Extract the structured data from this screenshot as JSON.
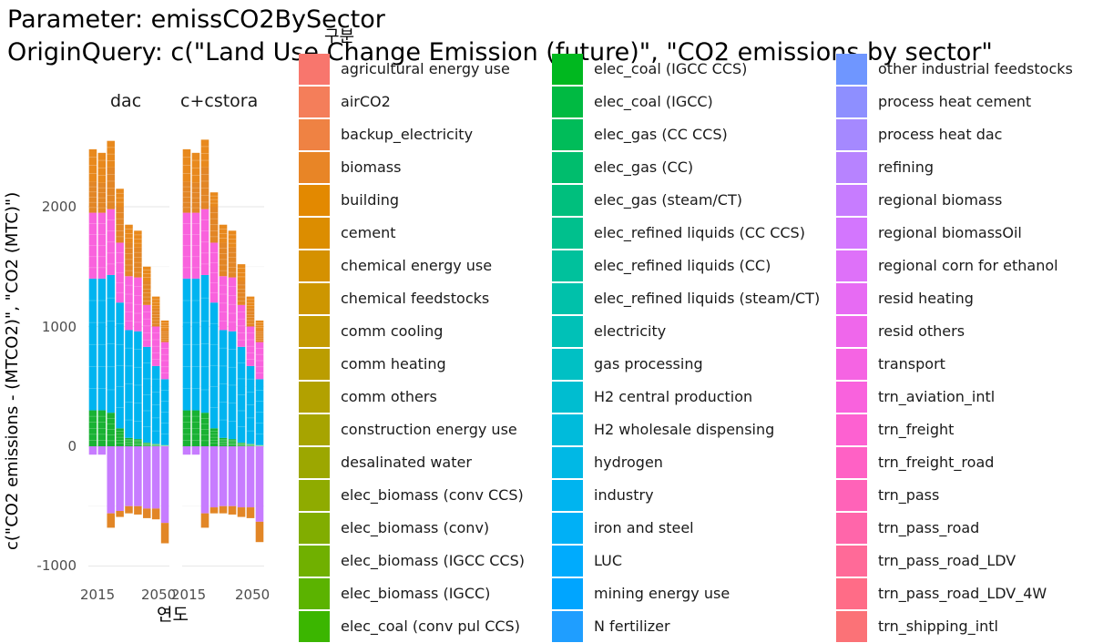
{
  "chart_data": {
    "type": "bar",
    "title_lines": [
      "Parameter: emissCO2BySector",
      "OriginQuery: c(\"Land Use Change Emission (future)\", \"CO2 emissions by sector\""
    ],
    "ylabel": "c(\"CO2 emissions - (MTCO2)\", \"CO2 (MTC)\")",
    "xlabel": "연도",
    "legend_title": "구분",
    "ylim": [
      -1050,
      2700
    ],
    "y_ticks": [
      -1000,
      0,
      1000,
      2000
    ],
    "x_ticks": [
      2015,
      2050
    ],
    "years": [
      2010,
      2015,
      2020,
      2025,
      2030,
      2035,
      2040,
      2045,
      2050
    ],
    "grid": true,
    "legend_position": "right",
    "facets": [
      {
        "label": "dac",
        "totals_positive": [
          2480,
          2450,
          2550,
          2150,
          1850,
          1800,
          1500,
          1250,
          1050
        ],
        "totals_negative": [
          -70,
          -70,
          -680,
          -590,
          -560,
          -570,
          -600,
          -610,
          -810
        ],
        "series_groups": [
          {
            "name": "elec_coal",
            "color": "#19b233",
            "positive": [
              300,
              300,
              280,
              150,
              70,
              60,
              30,
              20,
              10
            ]
          },
          {
            "name": "industry",
            "color": "#00b4f0",
            "positive": [
              1100,
              1100,
              1150,
              1050,
              900,
              900,
              800,
              650,
              550
            ]
          },
          {
            "name": "transport",
            "color": "#f962dd",
            "positive": [
              550,
              550,
              550,
              500,
              450,
              450,
              350,
              330,
              310
            ]
          },
          {
            "name": "biomass",
            "color": "#e28626",
            "positive": [
              260,
              250,
              350,
              300,
              280,
              250,
              200,
              150,
              100
            ],
            "negative": [
              0,
              0,
              -120,
              -50,
              -60,
              -70,
              -80,
              -90,
              -170
            ]
          },
          {
            "name": "regional biomass",
            "color": "#c77cff",
            "negative": [
              -70,
              -70,
              -560,
              -540,
              -500,
              -500,
              -520,
              -520,
              -640
            ]
          }
        ]
      },
      {
        "label": "c+cstora",
        "totals_positive": [
          2480,
          2450,
          2560,
          2120,
          1850,
          1800,
          1520,
          1250,
          1050
        ],
        "totals_negative": [
          -70,
          -70,
          -680,
          -560,
          -560,
          -570,
          -590,
          -600,
          -800
        ],
        "series_groups": [
          {
            "name": "elec_coal",
            "color": "#19b233",
            "positive": [
              300,
              300,
              280,
              150,
              70,
              60,
              30,
              20,
              10
            ]
          },
          {
            "name": "industry",
            "color": "#00b4f0",
            "positive": [
              1100,
              1100,
              1150,
              1050,
              900,
              900,
              800,
              650,
              550
            ]
          },
          {
            "name": "transport",
            "color": "#f962dd",
            "positive": [
              550,
              550,
              550,
              500,
              450,
              450,
              350,
              330,
              310
            ]
          },
          {
            "name": "biomass",
            "color": "#e28626",
            "positive": [
              260,
              250,
              350,
              300,
              280,
              250,
              200,
              150,
              100
            ],
            "negative": [
              0,
              0,
              -120,
              -50,
              -60,
              -70,
              -80,
              -90,
              -170
            ]
          },
          {
            "name": "regional biomass",
            "color": "#c77cff",
            "negative": [
              -70,
              -70,
              -560,
              -510,
              -500,
              -500,
              -510,
              -510,
              -630
            ]
          }
        ]
      }
    ],
    "legend": [
      {
        "label": "agricultural energy use",
        "color": "#f8766d"
      },
      {
        "label": "airCO2",
        "color": "#f47e5a"
      },
      {
        "label": "backup_electricity",
        "color": "#ef8243"
      },
      {
        "label": "biomass",
        "color": "#e88526"
      },
      {
        "label": "building",
        "color": "#e38900"
      },
      {
        "label": "cement",
        "color": "#dc8d00"
      },
      {
        "label": "chemical energy use",
        "color": "#d59100"
      },
      {
        "label": "chemical feedstocks",
        "color": "#cd9600"
      },
      {
        "label": "comm cooling",
        "color": "#c49a00"
      },
      {
        "label": "comm heating",
        "color": "#bb9d00"
      },
      {
        "label": "comm others",
        "color": "#b2a100"
      },
      {
        "label": "construction energy use",
        "color": "#a7a400"
      },
      {
        "label": "desalinated water",
        "color": "#9ca700"
      },
      {
        "label": "elec_biomass (conv CCS)",
        "color": "#8fab00"
      },
      {
        "label": "elec_biomass (conv)",
        "color": "#81ad00"
      },
      {
        "label": "elec_biomass (IGCC CCS)",
        "color": "#70b000"
      },
      {
        "label": "elec_biomass (IGCC)",
        "color": "#5bb300"
      },
      {
        "label": "elec_coal (conv pul CCS)",
        "color": "#3bb600"
      },
      {
        "label": "elec_coal (IGCC CCS)",
        "color": "#00b81f"
      },
      {
        "label": "elec_coal (IGCC)",
        "color": "#00ba42"
      },
      {
        "label": "elec_gas (CC CCS)",
        "color": "#00bc59"
      },
      {
        "label": "elec_gas (CC)",
        "color": "#00bd6d"
      },
      {
        "label": "elec_gas (steam/CT)",
        "color": "#00bf7d"
      },
      {
        "label": "elec_refined liquids (CC CCS)",
        "color": "#00c08d"
      },
      {
        "label": "elec_refined liquids (CC)",
        "color": "#00c19c"
      },
      {
        "label": "elec_refined liquids (steam/CT)",
        "color": "#00c1aa"
      },
      {
        "label": "electricity",
        "color": "#00c1b7"
      },
      {
        "label": "gas processing",
        "color": "#00c0c4"
      },
      {
        "label": "H2 central production",
        "color": "#00bdd0"
      },
      {
        "label": "H2 wholesale dispensing",
        "color": "#00bbdb"
      },
      {
        "label": "hydrogen",
        "color": "#00b8e5"
      },
      {
        "label": "industry",
        "color": "#00b4ef"
      },
      {
        "label": "iron and steel",
        "color": "#00b0f6"
      },
      {
        "label": "LUC",
        "color": "#00abfd"
      },
      {
        "label": "mining energy use",
        "color": "#00a5ff"
      },
      {
        "label": "N fertilizer",
        "color": "#1f9eff"
      },
      {
        "label": "other industrial feedstocks",
        "color": "#6f96ff"
      },
      {
        "label": "process heat cement",
        "color": "#8e8fff"
      },
      {
        "label": "process heat dac",
        "color": "#a589ff"
      },
      {
        "label": "refining",
        "color": "#b783ff"
      },
      {
        "label": "regional biomass",
        "color": "#c77cff"
      },
      {
        "label": "regional biomassOil",
        "color": "#d376fe"
      },
      {
        "label": "regional corn for ethanol",
        "color": "#de71f9"
      },
      {
        "label": "resid heating",
        "color": "#e76bf3"
      },
      {
        "label": "resid others",
        "color": "#ef67eb"
      },
      {
        "label": "transport",
        "color": "#f564e3"
      },
      {
        "label": "trn_aviation_intl",
        "color": "#f962dd"
      },
      {
        "label": "trn_freight",
        "color": "#fd61d1"
      },
      {
        "label": "trn_freight_road",
        "color": "#ff61c5"
      },
      {
        "label": "trn_pass",
        "color": "#ff63b8"
      },
      {
        "label": "trn_pass_road",
        "color": "#ff66aa"
      },
      {
        "label": "trn_pass_road_LDV",
        "color": "#ff6a98"
      },
      {
        "label": "trn_pass_road_LDV_4W",
        "color": "#ff6c87"
      },
      {
        "label": "trn_shipping_intl",
        "color": "#fb7277"
      }
    ]
  }
}
